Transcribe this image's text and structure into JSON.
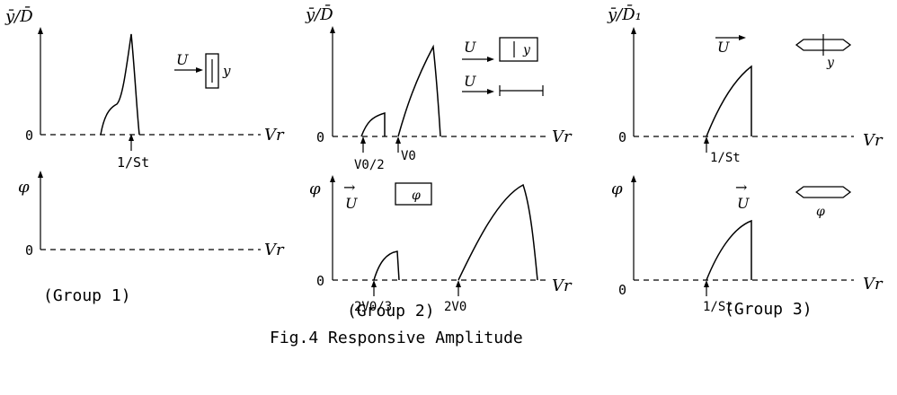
{
  "caption": "Fig.4 Responsive Amplitude",
  "groups": [
    {
      "label": "(Group 1)",
      "top_ylabel": "ȳ/D̄",
      "bottom_ylabel": "φ",
      "xlabel": "Vr",
      "origin": "0",
      "markers": {
        "top": [
          "1/St"
        ]
      },
      "flow": "U",
      "disp": "y"
    },
    {
      "label": "(Group 2)",
      "top_ylabel": "ȳ/D̄",
      "bottom_ylabel": "φ",
      "xlabel": "Vr",
      "origin": "0",
      "markers": {
        "top": [
          "V0/2",
          "V0"
        ],
        "bottom": [
          "2V0/3",
          "2V0"
        ]
      },
      "flow": "U",
      "disp": "y",
      "rot": "φ"
    },
    {
      "label": "(Group 3)",
      "top_ylabel": "ȳ/D̄₁",
      "bottom_ylabel": "φ",
      "xlabel": "Vr",
      "origin": "0",
      "markers": {
        "top": [
          "1/St"
        ],
        "bottom": [
          "1/St"
        ]
      },
      "flow": "U",
      "disp": "y",
      "rot": "φ"
    }
  ],
  "marker_text": {
    "st": "1/St",
    "v0half": "V0/2",
    "v0": "V0",
    "twov0third": "2V0/3",
    "twov0": "2V0"
  },
  "arrow_char": "→"
}
